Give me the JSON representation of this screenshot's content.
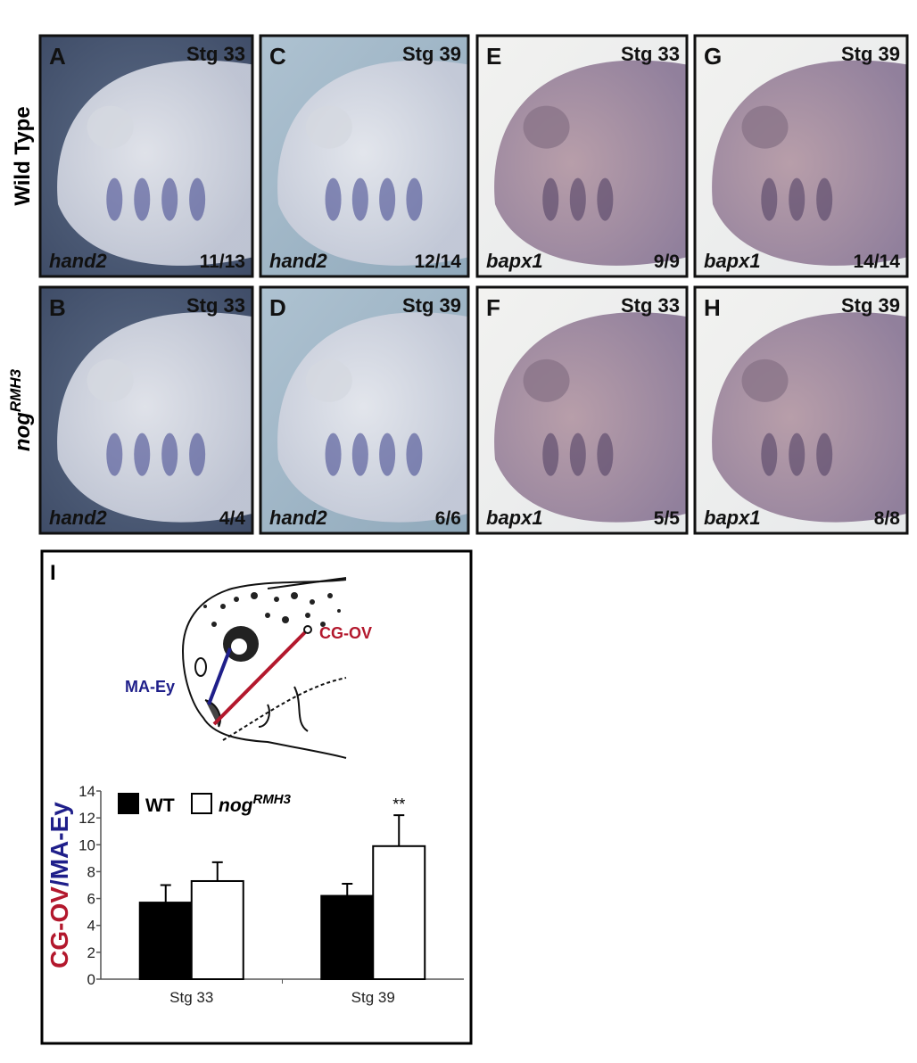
{
  "row_labels": [
    {
      "text": "Wild Type"
    },
    {
      "text": "nog",
      "superscript": "RMH3"
    }
  ],
  "panels": [
    {
      "letter": "A",
      "stage": "Stg 33",
      "gene": "hand2",
      "count": "11/13"
    },
    {
      "letter": "B",
      "stage": "Stg 33",
      "gene": "hand2",
      "count": "4/4"
    },
    {
      "letter": "C",
      "stage": "Stg 39",
      "gene": "hand2",
      "count": "12/14"
    },
    {
      "letter": "D",
      "stage": "Stg 39",
      "gene": "hand2",
      "count": "6/6"
    },
    {
      "letter": "E",
      "stage": "Stg 33",
      "gene": "bapx1",
      "count": "9/9"
    },
    {
      "letter": "F",
      "stage": "Stg 33",
      "gene": "bapx1",
      "count": "5/5"
    },
    {
      "letter": "G",
      "stage": "Stg 39",
      "gene": "bapx1",
      "count": "14/14"
    },
    {
      "letter": "H",
      "stage": "Stg 39",
      "gene": "bapx1",
      "count": "8/8"
    }
  ],
  "panel_i": {
    "letter": "I",
    "diagram_labels": {
      "cg_ov": "CG-OV",
      "ma_ey": "MA-Ey"
    }
  },
  "chart_data": {
    "type": "bar",
    "ylabel_parts": [
      {
        "text": "CG-OV",
        "color": "#b3182d"
      },
      {
        "text": "/MA-Ey",
        "color": "#1f1f8a"
      }
    ],
    "categories": [
      "Stg 33",
      "Stg 39"
    ],
    "series": [
      {
        "name": "WT",
        "color": "#000000",
        "values": [
          5.7,
          6.2
        ],
        "errors": [
          1.3,
          0.9
        ]
      },
      {
        "name": "nog",
        "name_superscript": "RMH3",
        "color": "#ffffff",
        "values": [
          7.3,
          9.9
        ],
        "errors": [
          1.4,
          2.3
        ]
      }
    ],
    "annotations": [
      {
        "text": "**",
        "series": 1,
        "category": 1
      }
    ],
    "ylim": [
      0,
      14
    ],
    "yticks": [
      0,
      2,
      4,
      6,
      8,
      10,
      12,
      14
    ],
    "grid": false
  }
}
